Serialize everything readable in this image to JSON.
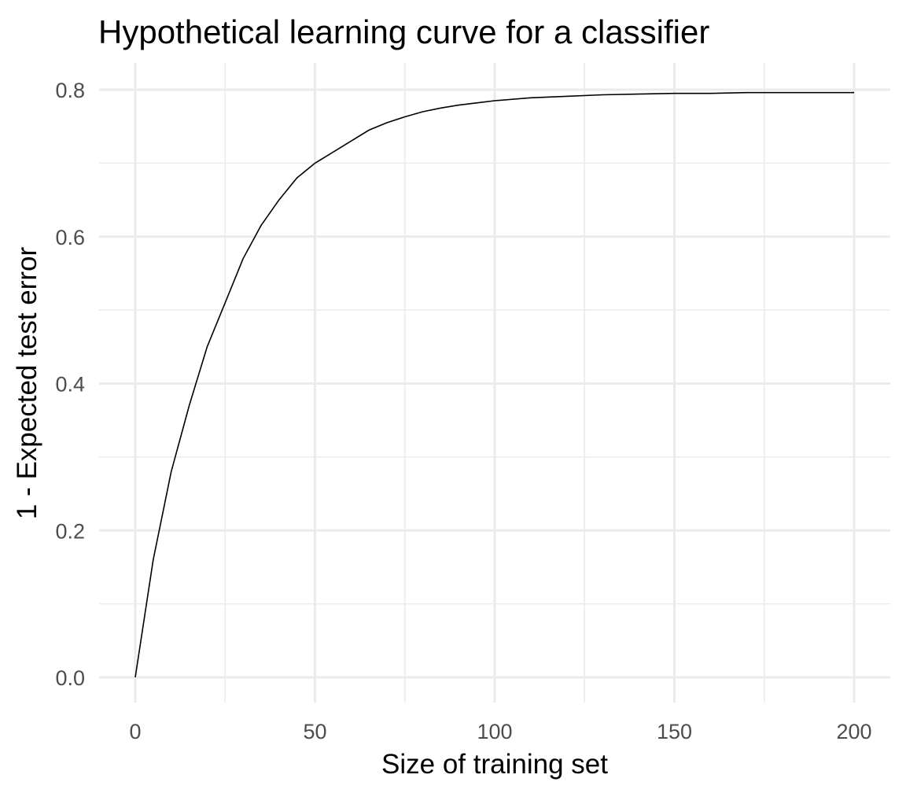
{
  "chart_data": {
    "type": "line",
    "title": "Hypothetical learning curve for a classifier",
    "xlabel": "Size of training set",
    "ylabel": "1 - Expected test error",
    "xlim": [
      0,
      200
    ],
    "ylim": [
      0,
      0.8
    ],
    "x_ticks": [
      0,
      50,
      100,
      150,
      200
    ],
    "x_tick_labels": [
      "0",
      "50",
      "100",
      "150",
      "200"
    ],
    "y_ticks": [
      0,
      0.2,
      0.4,
      0.6,
      0.8
    ],
    "y_tick_labels": [
      "0.0",
      "0.2",
      "0.4",
      "0.6",
      "0.8"
    ],
    "grid": true,
    "legend": "none",
    "line_color": "#000000",
    "series": [
      {
        "x": [
          0,
          5,
          10,
          15,
          20,
          25,
          30,
          35,
          40,
          45,
          50,
          55,
          60,
          65,
          70,
          75,
          80,
          85,
          90,
          95,
          100,
          110,
          120,
          130,
          140,
          150,
          160,
          170,
          180,
          190,
          200
        ],
        "y": [
          0.0,
          0.16,
          0.28,
          0.37,
          0.45,
          0.51,
          0.57,
          0.615,
          0.65,
          0.68,
          0.7,
          0.715,
          0.73,
          0.745,
          0.755,
          0.763,
          0.77,
          0.775,
          0.779,
          0.782,
          0.785,
          0.789,
          0.791,
          0.793,
          0.794,
          0.795,
          0.795,
          0.796,
          0.796,
          0.796,
          0.796
        ]
      }
    ]
  }
}
